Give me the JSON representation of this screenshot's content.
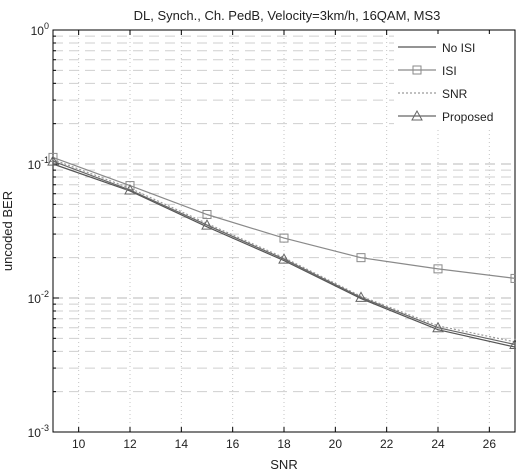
{
  "chart_data": {
    "type": "line",
    "title": "DL, Synch., Ch. PedB, Velocity=3km/h, 16QAM, MS3",
    "xlabel": "SNR",
    "ylabel": "uncoded BER",
    "xlim": [
      9,
      27
    ],
    "ylim": [
      0.001,
      1
    ],
    "yscale": "log",
    "grid": "on",
    "legend_position": "top-right",
    "xticks": [
      "10",
      "12",
      "14",
      "16",
      "18",
      "20",
      "22",
      "24",
      "26"
    ],
    "yticks": [
      "10^0",
      "10^-1",
      "10^-2",
      "10^-3"
    ],
    "series": [
      {
        "name": "No ISI",
        "marker": "none",
        "color": "#555555",
        "dash": "0",
        "x": [
          9,
          12,
          15,
          18,
          21,
          24,
          27
        ],
        "y": [
          0.1,
          0.063,
          0.034,
          0.019,
          0.0099,
          0.0058,
          0.0043
        ]
      },
      {
        "name": "ISI",
        "marker": "square",
        "color": "#8a8a8a",
        "dash": "0",
        "x": [
          9,
          12,
          15,
          18,
          21,
          24,
          27
        ],
        "y": [
          0.112,
          0.069,
          0.042,
          0.028,
          0.02,
          0.0165,
          0.014
        ]
      },
      {
        "name": "SNR",
        "marker": "none",
        "color": "#9a9a9a",
        "dash": "2,2",
        "x": [
          9,
          12,
          15,
          18,
          21,
          24,
          27
        ],
        "y": [
          0.108,
          0.066,
          0.036,
          0.02,
          0.0103,
          0.0062,
          0.0047
        ]
      },
      {
        "name": "Proposed",
        "marker": "triangle",
        "color": "#666666",
        "dash": "0",
        "x": [
          9,
          12,
          15,
          18,
          21,
          24,
          27
        ],
        "y": [
          0.105,
          0.064,
          0.035,
          0.0195,
          0.0101,
          0.006,
          0.0045
        ]
      }
    ]
  }
}
